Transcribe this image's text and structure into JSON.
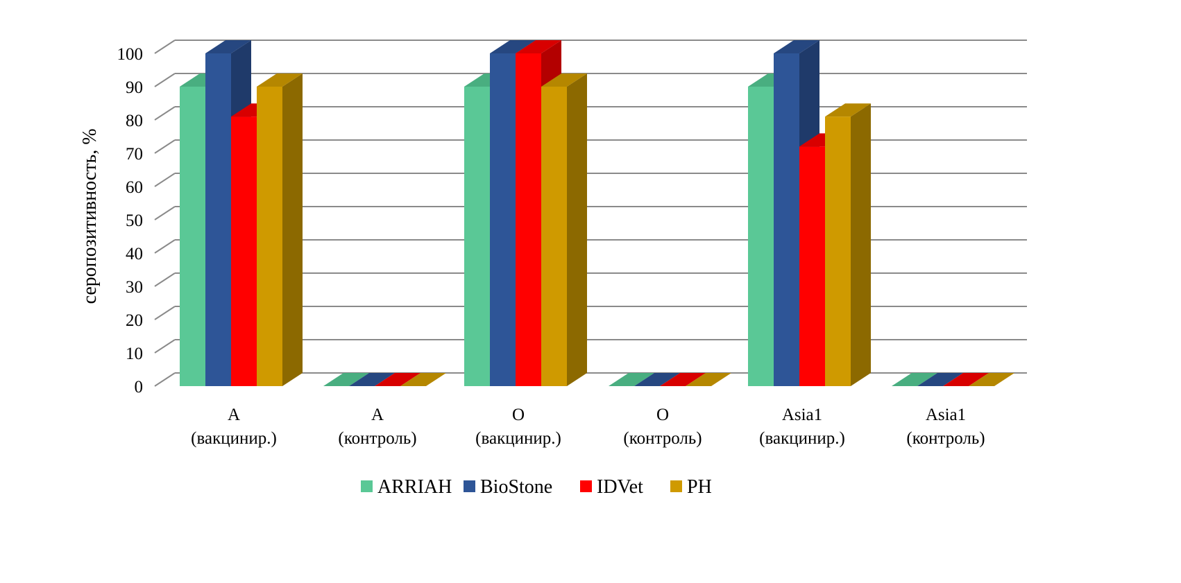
{
  "chart_data": {
    "type": "bar",
    "style": "3d-clustered-column",
    "title": "",
    "xlabel": "",
    "ylabel": "серопозитивность, %",
    "ylim": [
      0,
      100
    ],
    "ytick_step": 10,
    "yticks": [
      "0",
      "10",
      "20",
      "30",
      "40",
      "50",
      "60",
      "70",
      "80",
      "90",
      "100"
    ],
    "grid": true,
    "legend_position": "bottom",
    "categories": [
      [
        "A",
        "(вакцинир.)"
      ],
      [
        "A",
        "(контроль)"
      ],
      [
        "O",
        "(вакцинир.)"
      ],
      [
        "O",
        "(контроль)"
      ],
      [
        "Asia1",
        "(вакцинир.)"
      ],
      [
        "Asia1",
        "(контроль)"
      ]
    ],
    "series": [
      {
        "name": "ARRIAH",
        "color": "#5ac896",
        "side": "#3f9a70",
        "top": "#49ae80",
        "values": [
          90,
          0,
          90,
          0,
          90,
          0
        ]
      },
      {
        "name": "BioStone",
        "color": "#2e5597",
        "side": "#1f3a6a",
        "top": "#264780",
        "values": [
          100,
          0,
          100,
          0,
          100,
          0
        ]
      },
      {
        "name": "IDVet",
        "color": "#ff0000",
        "side": "#b30000",
        "top": "#d80000",
        "values": [
          81,
          0,
          100,
          0,
          72,
          0
        ]
      },
      {
        "name": "PH",
        "color": "#cf9a00",
        "side": "#8c6900",
        "top": "#b58700",
        "values": [
          90,
          0,
          90,
          0,
          81,
          0
        ]
      }
    ]
  }
}
